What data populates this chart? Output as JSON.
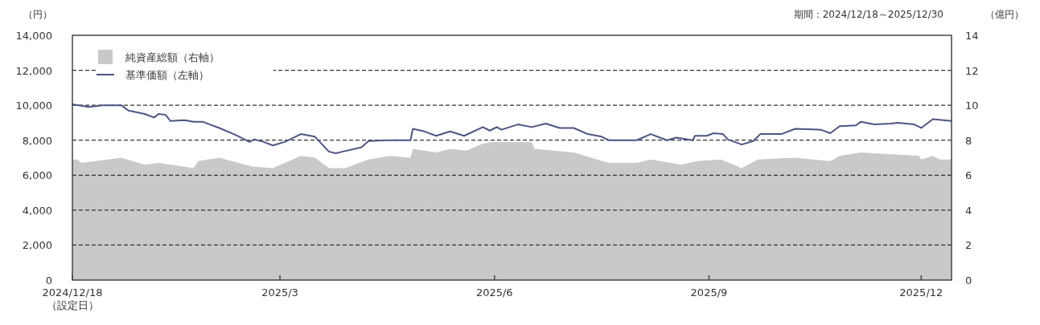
{
  "chart_data": {
    "type": "line",
    "ylabel": "（円）",
    "y2label": "（億円）",
    "annotations": [
      "期間：2024/12/18～2025/12/30"
    ],
    "xlim": [
      "2024-12-18",
      "2025-12-30"
    ],
    "xticks": [
      {
        "value": "2024-12-18",
        "label": "2024/12/18\n（設定日）"
      },
      {
        "value": "2025-03-17",
        "label": "2025/3"
      },
      {
        "value": "2025-06-17",
        "label": "2025/6"
      },
      {
        "value": "2025-09-17",
        "label": "2025/9"
      },
      {
        "value": "2025-12-17",
        "label": "2025/12"
      }
    ],
    "ylim": [
      0,
      14000
    ],
    "yticks": [
      0,
      {
        "value": 2000,
        "label": "2,000"
      },
      {
        "value": 4000,
        "label": "4,000"
      },
      {
        "value": 6000,
        "label": "6,000"
      },
      {
        "value": 8000,
        "label": "8,000"
      },
      {
        "value": 10000,
        "label": "10,000"
      },
      {
        "value": 12000,
        "label": "12,000"
      },
      {
        "value": 14000,
        "label": "14,000"
      }
    ],
    "y2lim": [
      0,
      14
    ],
    "y2ticks": [
      0,
      2,
      4,
      6,
      8,
      10,
      12,
      14
    ],
    "grid": "y",
    "legend": "top left",
    "line_style": "solid",
    "series": [
      {
        "name": "純資産総額（右軸）",
        "type": "area",
        "axis": "y2",
        "color": "#c8c9ca",
        "x": [
          "2024-12-18",
          "2024-12-20",
          "2024-12-22",
          "2025-01-08",
          "2025-01-18",
          "2025-01-24",
          "2025-02-08",
          "2025-02-10",
          "2025-02-19",
          "2025-03-05",
          "2025-03-14",
          "2025-03-26",
          "2025-04-01",
          "2025-04-07",
          "2025-04-14",
          "2025-04-24",
          "2025-05-03",
          "2025-05-12",
          "2025-05-13",
          "2025-05-23",
          "2025-05-29",
          "2025-06-05",
          "2025-06-12",
          "2025-06-16",
          "2025-07-03",
          "2025-07-04",
          "2025-07-21",
          "2025-08-05",
          "2025-08-17",
          "2025-08-23",
          "2025-09-05",
          "2025-09-12",
          "2025-09-22",
          "2025-10-01",
          "2025-10-08",
          "2025-10-24",
          "2025-11-08",
          "2025-11-12",
          "2025-11-21",
          "2025-12-16",
          "2025-12-17",
          "2025-12-22",
          "2025-12-25",
          "2025-12-30"
        ],
        "values": [
          6.9,
          6.9,
          6.7,
          7.0,
          6.6,
          6.7,
          6.4,
          6.8,
          7.0,
          6.5,
          6.4,
          7.1,
          7.0,
          6.4,
          6.4,
          6.9,
          7.1,
          7.0,
          7.5,
          7.3,
          7.5,
          7.4,
          7.8,
          7.9,
          7.9,
          7.5,
          7.3,
          6.7,
          6.7,
          6.9,
          6.6,
          6.8,
          6.9,
          6.4,
          6.9,
          7.0,
          6.8,
          7.1,
          7.3,
          7.1,
          6.9,
          7.1,
          6.9,
          6.9
        ]
      },
      {
        "name": "基準価額（左軸）",
        "color": "#4a5590",
        "x": [
          "2024-12-18",
          "2024-12-25",
          "2024-12-31",
          "2025-01-08",
          "2025-01-11",
          "2025-01-18",
          "2025-01-22",
          "2025-01-24",
          "2025-01-27",
          "2025-01-29",
          "2025-02-04",
          "2025-02-08",
          "2025-02-12",
          "2025-02-19",
          "2025-02-26",
          "2025-03-04",
          "2025-03-06",
          "2025-03-10",
          "2025-03-14",
          "2025-03-19",
          "2025-03-26",
          "2025-04-01",
          "2025-04-07",
          "2025-04-10",
          "2025-04-13",
          "2025-04-21",
          "2025-04-24",
          "2025-05-02",
          "2025-05-12",
          "2025-05-13",
          "2025-05-18",
          "2025-05-23",
          "2025-05-29",
          "2025-06-04",
          "2025-06-12",
          "2025-06-15",
          "2025-06-18",
          "2025-06-20",
          "2025-06-27",
          "2025-07-03",
          "2025-07-09",
          "2025-07-15",
          "2025-07-21",
          "2025-07-27",
          "2025-08-02",
          "2025-08-05",
          "2025-08-17",
          "2025-08-23",
          "2025-08-30",
          "2025-09-03",
          "2025-09-10",
          "2025-09-11",
          "2025-09-16",
          "2025-09-19",
          "2025-09-23",
          "2025-09-25",
          "2025-10-01",
          "2025-10-06",
          "2025-10-09",
          "2025-10-18",
          "2025-10-24",
          "2025-11-04",
          "2025-11-08",
          "2025-11-12",
          "2025-11-19",
          "2025-11-21",
          "2025-11-27",
          "2025-12-04",
          "2025-12-07",
          "2025-12-14",
          "2025-12-17",
          "2025-12-22",
          "2025-12-30"
        ],
        "values": [
          10050,
          9900,
          10000,
          10000,
          9700,
          9500,
          9300,
          9500,
          9450,
          9100,
          9150,
          9050,
          9050,
          8700,
          8300,
          7900,
          8050,
          7900,
          7700,
          7900,
          8350,
          8200,
          7350,
          7250,
          7350,
          7600,
          7950,
          8000,
          8000,
          8650,
          8500,
          8250,
          8500,
          8250,
          8750,
          8550,
          8750,
          8600,
          8900,
          8750,
          8950,
          8700,
          8700,
          8350,
          8200,
          8000,
          8000,
          8350,
          8000,
          8150,
          8000,
          8250,
          8250,
          8400,
          8350,
          8050,
          7750,
          7950,
          8350,
          8350,
          8650,
          8600,
          8400,
          8800,
          8850,
          9050,
          8900,
          8950,
          9000,
          8900,
          8700,
          9200,
          9100
        ]
      }
    ]
  }
}
